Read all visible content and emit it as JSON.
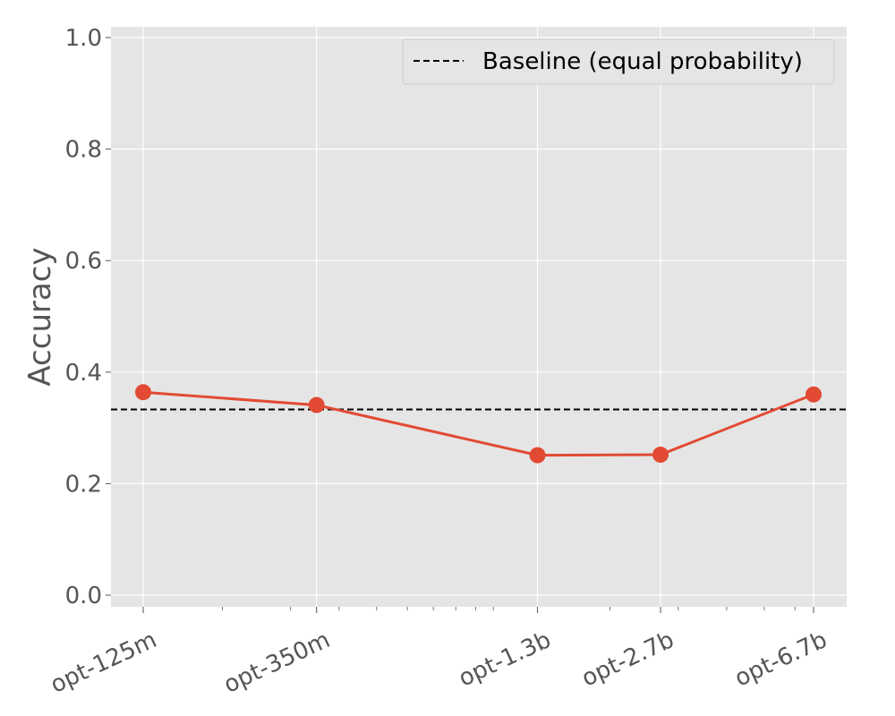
{
  "chart_data": {
    "type": "line",
    "title": "",
    "xlabel": "",
    "ylabel": "Accuracy",
    "x_scale": "log",
    "x_params_millions": [
      125,
      350,
      1300,
      2700,
      6700
    ],
    "categories": [
      "opt-125m",
      "opt-350m",
      "opt-1.3b",
      "opt-2.7b",
      "opt-6.7b"
    ],
    "series": [
      {
        "values": [
          0.364,
          0.341,
          0.251,
          0.252,
          0.36
        ],
        "color": "#E24A33"
      }
    ],
    "baseline": {
      "name": "Baseline (equal probability)",
      "value": 0.333,
      "color": "#000000",
      "style": "dashed"
    },
    "ylim": [
      0.0,
      1.0
    ],
    "yticks": [
      "0.0",
      "0.2",
      "0.4",
      "0.6",
      "0.8",
      "1.0"
    ],
    "grid": true,
    "background": "#E5E5E5",
    "legend_position": "top-right"
  }
}
